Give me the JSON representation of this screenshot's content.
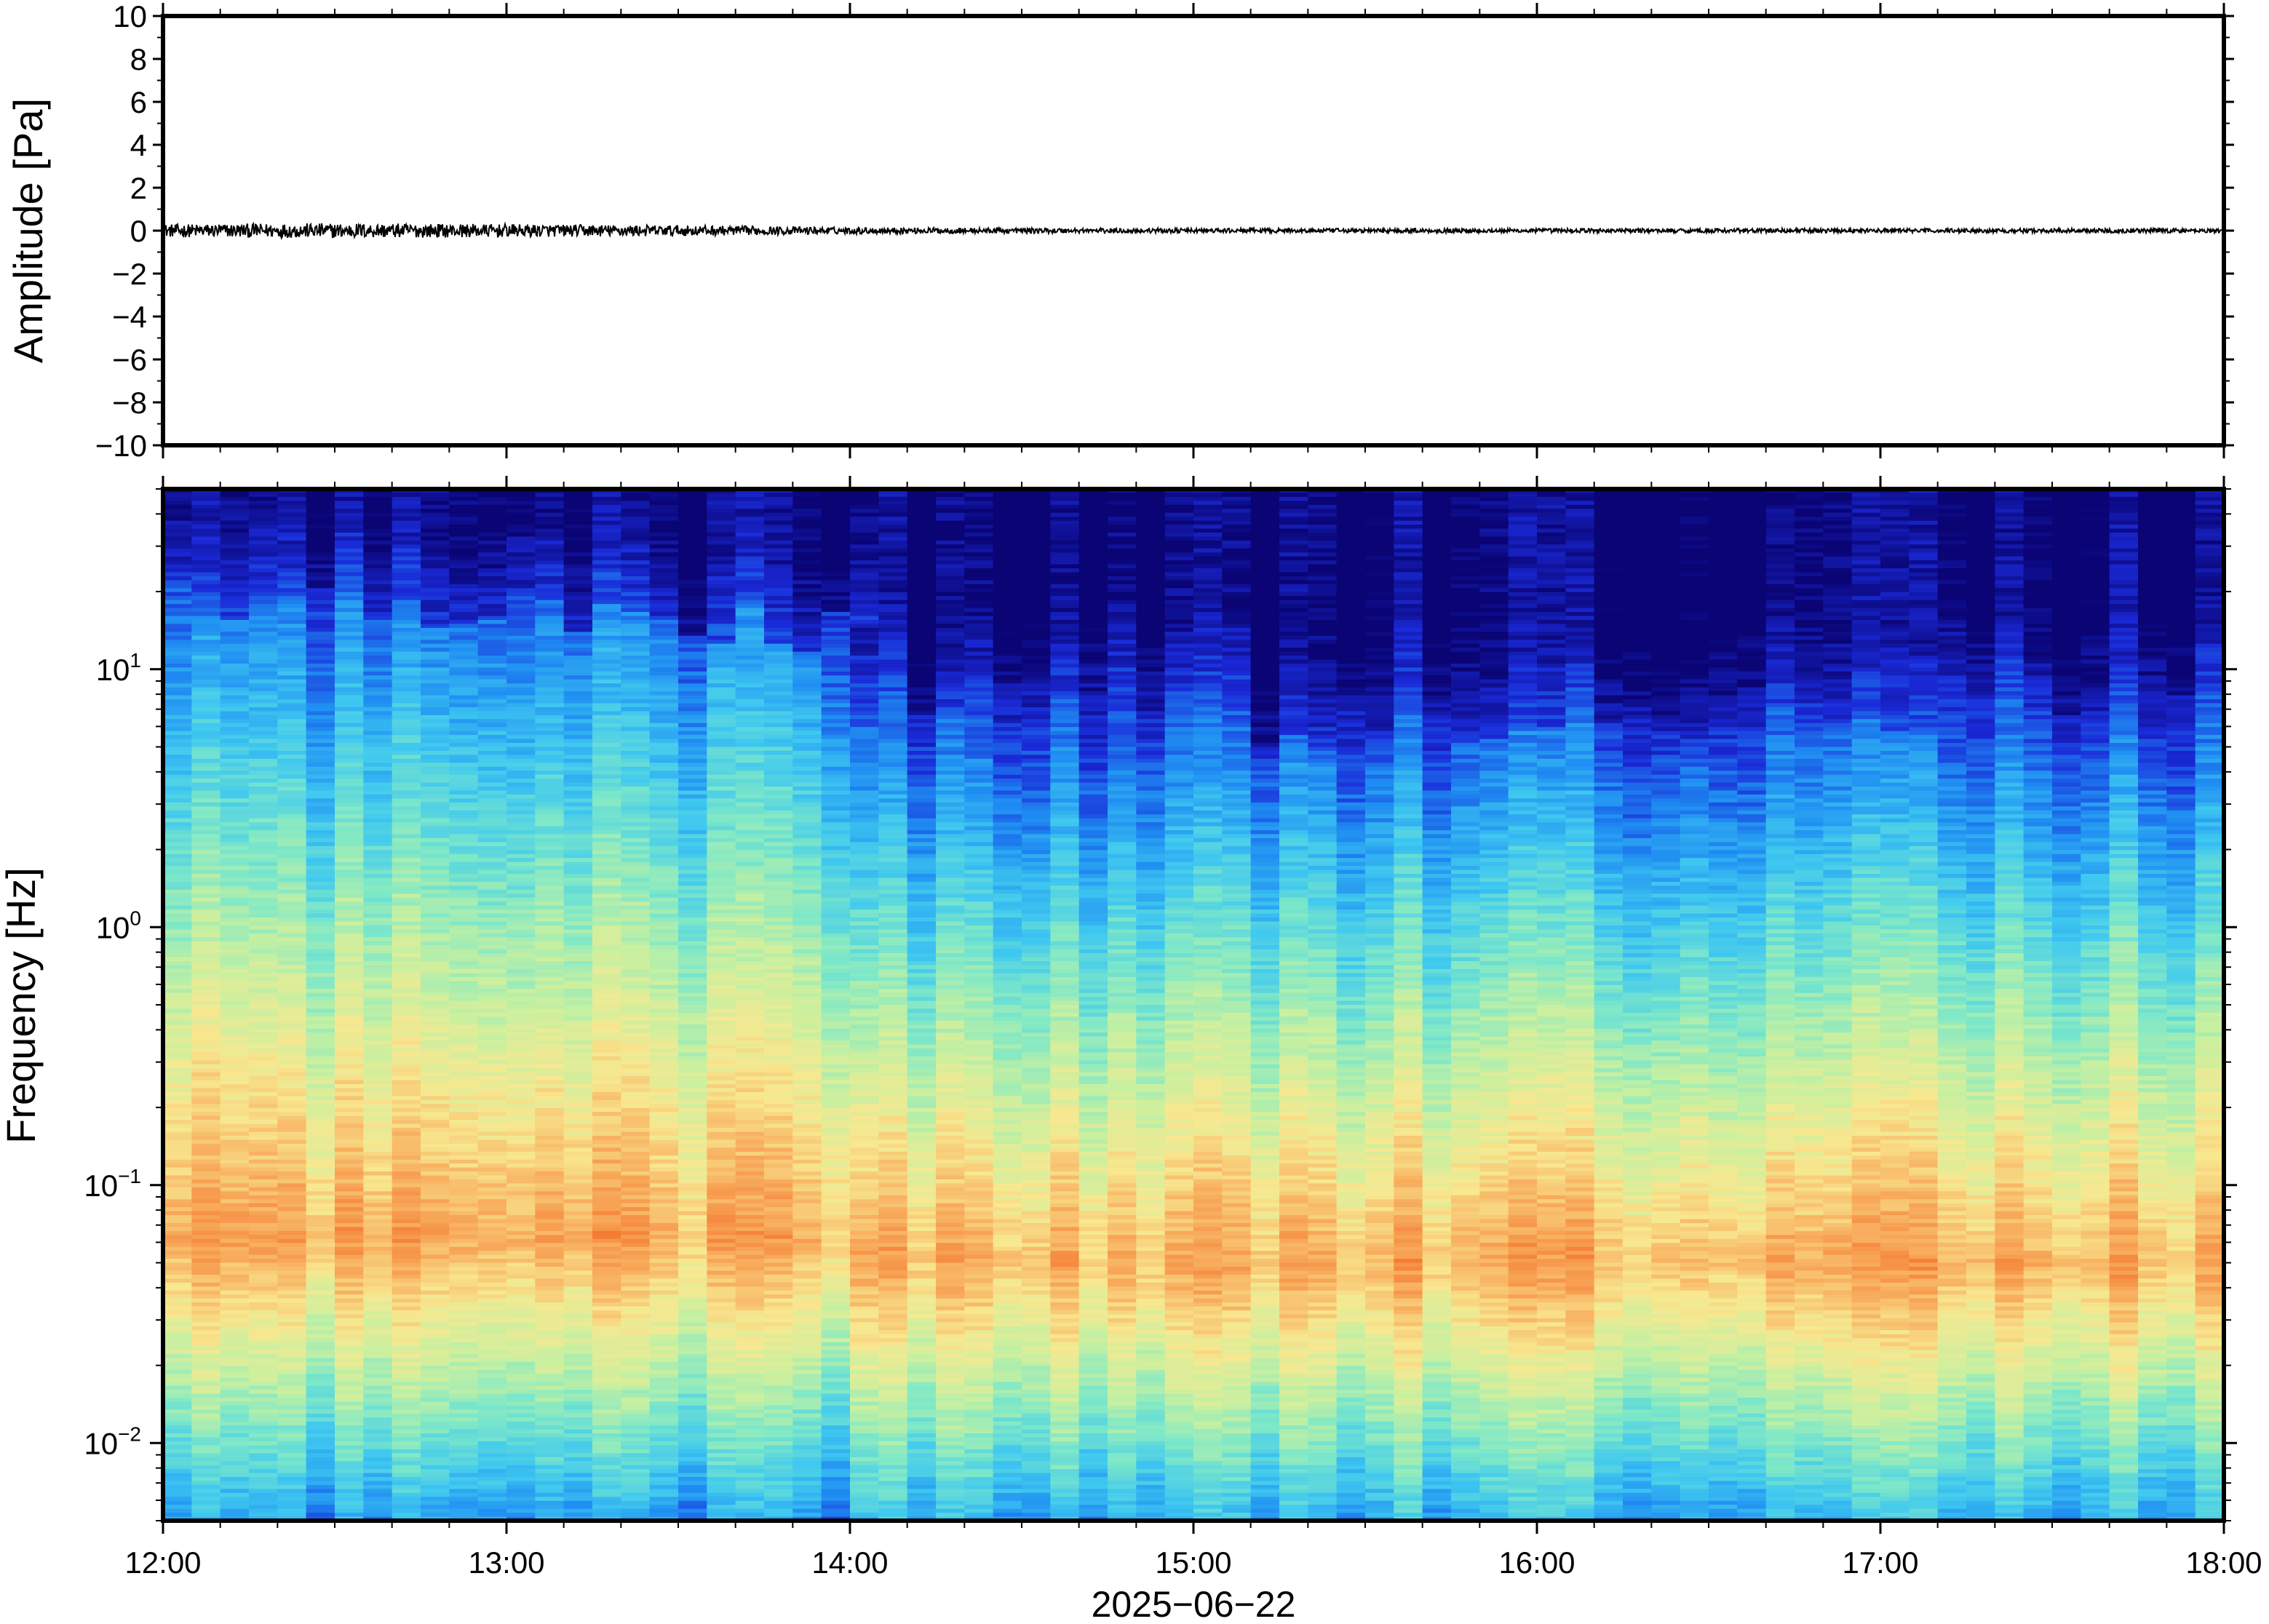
{
  "chart_data": [
    {
      "type": "line",
      "ylabel": "Amplitude [Pa]",
      "ylim": [
        -10,
        10
      ],
      "yticks": [
        "10",
        "8",
        "6",
        "4",
        "2",
        "0",
        "−2",
        "−4",
        "−6",
        "−8",
        "−10"
      ],
      "ytick_values": [
        10,
        8,
        6,
        4,
        2,
        0,
        -2,
        -4,
        -6,
        -8,
        -10
      ],
      "xlim": [
        "12:00",
        "18:00"
      ],
      "series_color": "#000000",
      "trace_amplitude_envelope": [
        {
          "t": "12:00",
          "amp": 0.3
        },
        {
          "t": "12:30",
          "amp": 0.35
        },
        {
          "t": "13:00",
          "amp": 0.3
        },
        {
          "t": "13:30",
          "amp": 0.25
        },
        {
          "t": "14:00",
          "amp": 0.15
        },
        {
          "t": "15:00",
          "amp": 0.1
        },
        {
          "t": "16:00",
          "amp": 0.1
        },
        {
          "t": "17:00",
          "amp": 0.1
        },
        {
          "t": "18:00",
          "amp": 0.1
        }
      ],
      "grid": false
    },
    {
      "type": "heatmap",
      "ylabel": "Frequency [Hz]",
      "yscale": "log",
      "ylim": [
        0.005,
        50
      ],
      "yticks": [
        {
          "value": 0.01,
          "base": "10",
          "exp": "−2"
        },
        {
          "value": 0.1,
          "base": "10",
          "exp": "−1"
        },
        {
          "value": 1,
          "base": "10",
          "exp": "0"
        },
        {
          "value": 10,
          "base": "10",
          "exp": "1"
        }
      ],
      "xlim": [
        "12:00",
        "18:00"
      ],
      "xticks": [
        "12:00",
        "13:00",
        "14:00",
        "15:00",
        "16:00",
        "17:00",
        "18:00"
      ],
      "xlabel": "2025−06−22",
      "colormap": [
        "#0a0474",
        "#1a2ad8",
        "#1f8df2",
        "#3fc8f0",
        "#7ee8c8",
        "#c8f0a0",
        "#f8e890",
        "#f8b060",
        "#f47830"
      ],
      "grid": false
    }
  ]
}
